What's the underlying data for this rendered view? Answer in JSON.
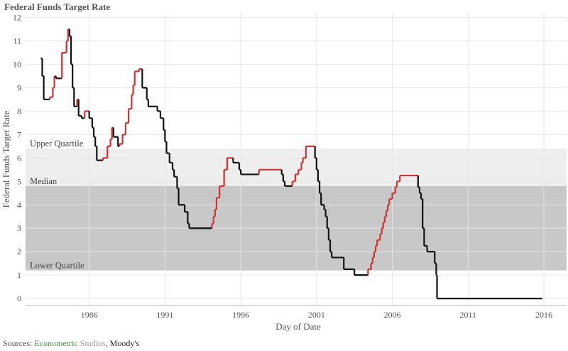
{
  "chart_data": {
    "type": "line",
    "title": "Federal Funds Target Rate",
    "xlabel": "Day of Date",
    "ylabel": "Federal Funds Target Rate",
    "x_ticks": [
      "1986",
      "1991",
      "1996",
      "2001",
      "2006",
      "2011",
      "2016"
    ],
    "y_ticks": [
      "0",
      "1",
      "2",
      "3",
      "4",
      "5",
      "6",
      "7",
      "8",
      "9",
      "10",
      "11",
      "12"
    ],
    "xlim": [
      1981.8,
      2017.5
    ],
    "ylim": [
      -0.3,
      12.2
    ],
    "grid": true,
    "bands": [
      {
        "label": "Upper Quartile",
        "from": 4.8,
        "to": 6.4,
        "color": "#eeeeee"
      },
      {
        "label": "Median",
        "from": 1.2,
        "to": 4.8,
        "color": "#c8c8c8"
      },
      {
        "label": "Lower Quartile",
        "from": 1.2,
        "to": 1.2,
        "color": "#c8c8c8"
      }
    ],
    "colors": {
      "rising": "#cc3333",
      "falling": "#111111",
      "grid": "#e6e6e6"
    },
    "series": [
      {
        "values": [
          [
            1982.8,
            10.25
          ],
          [
            1982.9,
            9.5
          ],
          [
            1983.0,
            8.5
          ],
          [
            1983.4,
            8.6
          ],
          [
            1983.6,
            9.0
          ],
          [
            1983.7,
            9.5
          ],
          [
            1983.8,
            9.4
          ],
          [
            1984.2,
            10.5
          ],
          [
            1984.5,
            11.0
          ],
          [
            1984.6,
            11.5
          ],
          [
            1984.7,
            11.2
          ],
          [
            1984.8,
            10.0
          ],
          [
            1984.9,
            9.0
          ],
          [
            1985.0,
            8.2
          ],
          [
            1985.2,
            8.5
          ],
          [
            1985.3,
            7.8
          ],
          [
            1985.5,
            7.7
          ],
          [
            1985.7,
            8.0
          ],
          [
            1986.0,
            7.7
          ],
          [
            1986.2,
            7.3
          ],
          [
            1986.3,
            6.9
          ],
          [
            1986.4,
            6.5
          ],
          [
            1986.5,
            5.9
          ],
          [
            1986.9,
            6.0
          ],
          [
            1987.2,
            6.5
          ],
          [
            1987.4,
            6.8
          ],
          [
            1987.5,
            7.3
          ],
          [
            1987.6,
            6.9
          ],
          [
            1987.9,
            6.5
          ],
          [
            1988.0,
            6.6
          ],
          [
            1988.2,
            7.0
          ],
          [
            1988.4,
            7.5
          ],
          [
            1988.6,
            8.1
          ],
          [
            1988.8,
            8.7
          ],
          [
            1988.9,
            9.1
          ],
          [
            1989.0,
            9.7
          ],
          [
            1989.3,
            9.8
          ],
          [
            1989.5,
            9.0
          ],
          [
            1989.8,
            8.5
          ],
          [
            1989.9,
            8.2
          ],
          [
            1990.5,
            8.0
          ],
          [
            1990.7,
            7.7
          ],
          [
            1990.9,
            7.2
          ],
          [
            1991.0,
            6.7
          ],
          [
            1991.1,
            6.2
          ],
          [
            1991.3,
            5.8
          ],
          [
            1991.5,
            5.5
          ],
          [
            1991.6,
            5.2
          ],
          [
            1991.8,
            4.7
          ],
          [
            1991.9,
            4.0
          ],
          [
            1992.3,
            3.7
          ],
          [
            1992.5,
            3.2
          ],
          [
            1992.6,
            3.0
          ],
          [
            1994.1,
            3.2
          ],
          [
            1994.2,
            3.5
          ],
          [
            1994.3,
            3.8
          ],
          [
            1994.4,
            4.3
          ],
          [
            1994.6,
            4.8
          ],
          [
            1994.9,
            5.5
          ],
          [
            1995.1,
            6.0
          ],
          [
            1995.5,
            5.8
          ],
          [
            1995.9,
            5.5
          ],
          [
            1996.0,
            5.3
          ],
          [
            1997.2,
            5.5
          ],
          [
            1998.7,
            5.3
          ],
          [
            1998.8,
            5.0
          ],
          [
            1998.9,
            4.8
          ],
          [
            1999.4,
            5.0
          ],
          [
            1999.6,
            5.3
          ],
          [
            1999.8,
            5.5
          ],
          [
            2000.0,
            5.8
          ],
          [
            2000.1,
            6.0
          ],
          [
            2000.3,
            6.5
          ],
          [
            2000.9,
            6.0
          ],
          [
            2001.0,
            5.5
          ],
          [
            2001.1,
            5.0
          ],
          [
            2001.2,
            4.5
          ],
          [
            2001.3,
            4.0
          ],
          [
            2001.5,
            3.8
          ],
          [
            2001.6,
            3.5
          ],
          [
            2001.7,
            3.0
          ],
          [
            2001.8,
            2.5
          ],
          [
            2001.9,
            2.0
          ],
          [
            2002.0,
            1.75
          ],
          [
            2002.8,
            1.25
          ],
          [
            2003.5,
            1.0
          ],
          [
            2004.4,
            1.25
          ],
          [
            2004.6,
            1.5
          ],
          [
            2004.7,
            1.75
          ],
          [
            2004.8,
            2.0
          ],
          [
            2004.9,
            2.25
          ],
          [
            2005.0,
            2.5
          ],
          [
            2005.2,
            2.75
          ],
          [
            2005.3,
            3.0
          ],
          [
            2005.4,
            3.25
          ],
          [
            2005.5,
            3.5
          ],
          [
            2005.6,
            3.75
          ],
          [
            2005.7,
            4.0
          ],
          [
            2005.8,
            4.25
          ],
          [
            2006.0,
            4.5
          ],
          [
            2006.2,
            4.75
          ],
          [
            2006.3,
            5.0
          ],
          [
            2006.5,
            5.25
          ],
          [
            2007.7,
            4.75
          ],
          [
            2007.8,
            4.5
          ],
          [
            2007.9,
            4.25
          ],
          [
            2008.0,
            3.0
          ],
          [
            2008.1,
            2.25
          ],
          [
            2008.3,
            2.0
          ],
          [
            2008.8,
            1.5
          ],
          [
            2008.9,
            1.0
          ],
          [
            2008.95,
            0.0
          ],
          [
            2015.9,
            0.0
          ]
        ]
      }
    ]
  },
  "sources": {
    "prefix": "Sources: ",
    "econometric": "Econometric",
    "studios": " Studios",
    "sep": ", ",
    "moodys": "Moody's"
  }
}
